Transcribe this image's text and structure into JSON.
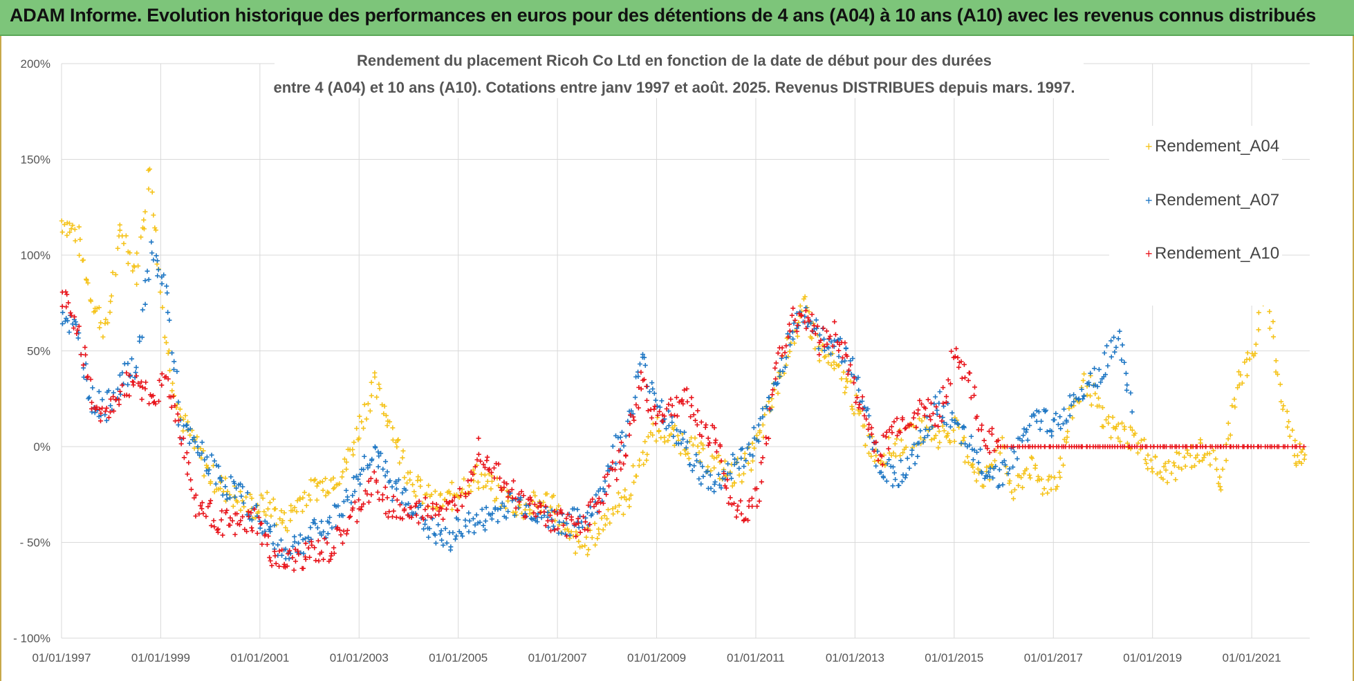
{
  "banner": {
    "text": "ADAM Informe. Evolution historique des performances en euros pour des détentions de 4 ans (A04) à 10 ans (A10) avec les revenus connus distribués"
  },
  "chart_data": {
    "type": "scatter",
    "title_line1": "Rendement du placement Ricoh Co Ltd en fonction de la date de début pour des durées",
    "title_line2": "entre 4 (A04) et 10 ans (A10). Cotations entre janv 1997 et août. 2025. Revenus DISTRIBUES depuis mars. 1997.",
    "xlabel": "",
    "ylabel": "",
    "x_range": [
      "1997-01-01",
      "2022-03-01"
    ],
    "y_range": [
      -100,
      200
    ],
    "y_ticks": [
      200,
      150,
      100,
      50,
      0,
      -50,
      -100
    ],
    "y_tick_labels": [
      "200%",
      "150%",
      "100%",
      "50%",
      "0%",
      "- 50%",
      "- 100%"
    ],
    "x_tick_labels": [
      "01/01/1997",
      "01/01/1999",
      "01/01/2001",
      "01/01/2003",
      "01/01/2005",
      "01/01/2007",
      "01/01/2009",
      "01/01/2011",
      "01/01/2013",
      "01/01/2015",
      "01/01/2017",
      "01/01/2019",
      "01/01/2021"
    ],
    "grid": true,
    "legend_position": "right",
    "marker": "+",
    "series": [
      {
        "name": "Rendement_A04",
        "color": "#f5c31b",
        "x": [
          "1997.0",
          "1997.3",
          "1997.6",
          "1997.9",
          "1998.2",
          "1998.5",
          "1998.8",
          "1999.1",
          "1999.4",
          "1999.7",
          "2000.0",
          "2000.3",
          "2000.6",
          "2000.9",
          "2001.2",
          "2001.5",
          "2001.8",
          "2002.1",
          "2002.4",
          "2002.7",
          "2003.0",
          "2003.3",
          "2003.6",
          "2003.9",
          "2004.2",
          "2004.5",
          "2004.8",
          "2005.1",
          "2005.4",
          "2005.7",
          "2006.0",
          "2006.3",
          "2006.6",
          "2006.9",
          "2007.2",
          "2007.5",
          "2007.8",
          "2008.1",
          "2008.4",
          "2008.7",
          "2009.0",
          "2009.3",
          "2009.6",
          "2009.9",
          "2010.2",
          "2010.5",
          "2010.8",
          "2011.1",
          "2011.4",
          "2011.7",
          "2012.0",
          "2012.3",
          "2012.6",
          "2012.9",
          "2013.2",
          "2013.5",
          "2013.8",
          "2014.1",
          "2014.4",
          "2014.7",
          "2015.0",
          "2015.3",
          "2015.6",
          "2015.9",
          "2016.2",
          "2016.5",
          "2016.8",
          "2017.1",
          "2017.4",
          "2017.7",
          "2018.0",
          "2018.3",
          "2018.6",
          "2018.9",
          "2019.2",
          "2019.5",
          "2019.8",
          "2020.1",
          "2020.4",
          "2020.7",
          "2021.0",
          "2021.3",
          "2021.6",
          "2021.9",
          "2022.1"
        ],
        "y": [
          118,
          112,
          78,
          60,
          115,
          90,
          145,
          55,
          15,
          0,
          -15,
          -22,
          -28,
          -32,
          -30,
          -40,
          -28,
          -22,
          -18,
          -12,
          10,
          32,
          15,
          -8,
          -22,
          -30,
          -28,
          -20,
          -15,
          -22,
          -28,
          -32,
          -30,
          -28,
          -48,
          -52,
          -45,
          -32,
          -28,
          -5,
          10,
          5,
          2,
          -5,
          -10,
          -15,
          -10,
          5,
          30,
          55,
          72,
          50,
          40,
          30,
          5,
          -5,
          0,
          5,
          10,
          5,
          10,
          -5,
          -20,
          5,
          -25,
          -10,
          -20,
          -15,
          20,
          35,
          12,
          8,
          5,
          -5,
          -15,
          -10,
          -5,
          0,
          -20,
          35,
          45,
          85,
          25,
          -5,
          0
        ]
      },
      {
        "name": "Rendement_A07",
        "color": "#1f77c4",
        "x": [
          "1997.0",
          "1997.3",
          "1997.6",
          "1997.9",
          "1998.2",
          "1998.5",
          "1998.8",
          "1999.1",
          "1999.4",
          "1999.7",
          "2000.0",
          "2000.3",
          "2000.6",
          "2000.9",
          "2001.2",
          "2001.5",
          "2001.8",
          "2002.1",
          "2002.4",
          "2002.7",
          "2003.0",
          "2003.3",
          "2003.6",
          "2003.9",
          "2004.2",
          "2004.5",
          "2004.8",
          "2005.1",
          "2005.4",
          "2005.7",
          "2006.0",
          "2006.3",
          "2006.6",
          "2006.9",
          "2007.2",
          "2007.5",
          "2007.8",
          "2008.1",
          "2008.4",
          "2008.7",
          "2009.0",
          "2009.3",
          "2009.6",
          "2009.9",
          "2010.2",
          "2010.5",
          "2010.8",
          "2011.1",
          "2011.4",
          "2011.7",
          "2012.0",
          "2012.3",
          "2012.6",
          "2012.9",
          "2013.2",
          "2013.5",
          "2013.8",
          "2014.1",
          "2014.4",
          "2014.7",
          "2015.0",
          "2015.3",
          "2015.6",
          "2015.9",
          "2016.2",
          "2016.5",
          "2016.8",
          "2017.1",
          "2017.4",
          "2017.7",
          "2018.0",
          "2018.3",
          "2018.6"
        ],
        "y": [
          70,
          60,
          25,
          20,
          35,
          40,
          100,
          85,
          10,
          0,
          -10,
          -20,
          -25,
          -35,
          -45,
          -55,
          -50,
          -45,
          -40,
          -30,
          -15,
          0,
          -20,
          -25,
          -35,
          -45,
          -50,
          -40,
          -40,
          -35,
          -30,
          -30,
          -35,
          -38,
          -40,
          -38,
          -30,
          -5,
          10,
          45,
          25,
          10,
          0,
          -15,
          -20,
          -10,
          -5,
          10,
          30,
          60,
          70,
          55,
          55,
          45,
          20,
          -10,
          -15,
          -10,
          5,
          25,
          10,
          0,
          -10,
          -15,
          -5,
          10,
          15,
          10,
          25,
          35,
          40,
          60,
          15
        ]
      },
      {
        "name": "Rendement_A10",
        "color": "#e8141b",
        "x": [
          "1997.0",
          "1997.3",
          "1997.6",
          "1997.9",
          "1998.2",
          "1998.5",
          "1998.8",
          "1999.1",
          "1999.4",
          "1999.7",
          "2000.0",
          "2000.3",
          "2000.6",
          "2000.9",
          "2001.2",
          "2001.5",
          "2001.8",
          "2002.1",
          "2002.4",
          "2002.7",
          "2003.0",
          "2003.3",
          "2003.6",
          "2003.9",
          "2004.2",
          "2004.5",
          "2004.8",
          "2005.1",
          "2005.4",
          "2005.7",
          "2006.0",
          "2006.3",
          "2006.6",
          "2006.9",
          "2007.2",
          "2007.5",
          "2007.8",
          "2008.1",
          "2008.4",
          "2008.7",
          "2009.0",
          "2009.3",
          "2009.6",
          "2009.9",
          "2010.2",
          "2010.5",
          "2010.8",
          "2011.1",
          "2011.4",
          "2011.7",
          "2012.0",
          "2012.3",
          "2012.6",
          "2012.9",
          "2013.2",
          "2013.5",
          "2013.8",
          "2014.1",
          "2014.4",
          "2014.7",
          "2015.0",
          "2015.3",
          "2015.6",
          "2015.9",
          "2016.5",
          "2017.0",
          "2017.5",
          "2018.0",
          "2018.5",
          "2019.0",
          "2019.5",
          "2020.0",
          "2020.5",
          "2021.0",
          "2021.5",
          "2022.1"
        ],
        "y": [
          80,
          65,
          25,
          15,
          30,
          35,
          25,
          35,
          10,
          -30,
          -35,
          -40,
          -42,
          -38,
          -55,
          -62,
          -58,
          -55,
          -55,
          -45,
          -30,
          -20,
          -30,
          -35,
          -35,
          -30,
          -35,
          -25,
          0,
          -10,
          -20,
          -30,
          -33,
          -38,
          -40,
          -40,
          -30,
          -15,
          0,
          35,
          15,
          20,
          25,
          10,
          5,
          -30,
          -35,
          -20,
          40,
          65,
          70,
          55,
          60,
          40,
          15,
          -5,
          10,
          15,
          20,
          15,
          50,
          35,
          5,
          0,
          0,
          0,
          0,
          0,
          0,
          0,
          0,
          0,
          0,
          0,
          0,
          0
        ]
      }
    ]
  }
}
